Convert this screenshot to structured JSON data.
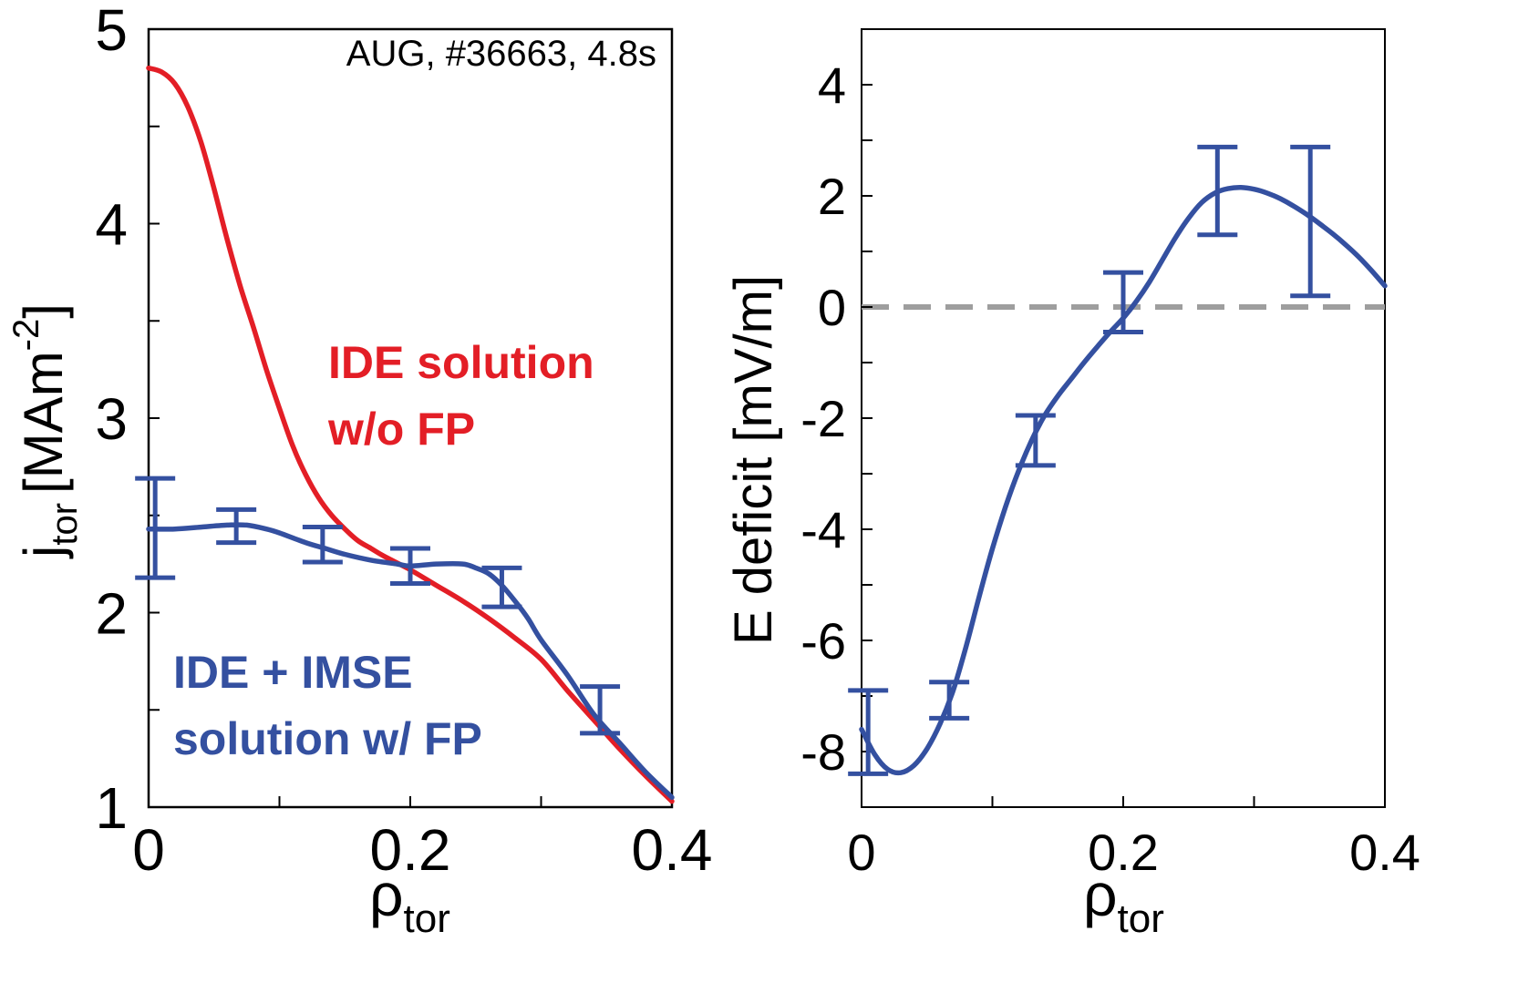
{
  "chart_data": [
    {
      "type": "line",
      "panel": "left",
      "annotation": "AUG, #36663, 4.8s",
      "xlabel": {
        "main": "ρ",
        "sub": "tor"
      },
      "ylabel": {
        "main": "j",
        "sub": "tor",
        "unit_pre": "[MAm",
        "unit_sup": "-2",
        "unit_post": "]"
      },
      "xlim": [
        0,
        0.4
      ],
      "ylim": [
        1,
        5
      ],
      "x_ticks": [
        0,
        0.1,
        0.2,
        0.3,
        0.4
      ],
      "x_tick_labels": [
        {
          "value": 0,
          "label": "0"
        },
        {
          "value": 0.2,
          "label": "0.2"
        },
        {
          "value": 0.4,
          "label": "0.4"
        }
      ],
      "y_ticks": [
        1,
        1.5,
        2,
        2.5,
        3,
        3.5,
        4,
        4.5,
        5
      ],
      "y_tick_labels": [
        {
          "value": 1,
          "label": "1"
        },
        {
          "value": 2,
          "label": "2"
        },
        {
          "value": 3,
          "label": "3"
        },
        {
          "value": 4,
          "label": "4"
        },
        {
          "value": 5,
          "label": "5"
        }
      ],
      "series": [
        {
          "name": "IDE solution w/o FP",
          "label_lines": [
            "IDE solution",
            "w/o FP"
          ],
          "color": "#e31e26",
          "x": [
            0,
            0.01,
            0.02,
            0.03,
            0.04,
            0.05,
            0.06,
            0.07,
            0.08,
            0.09,
            0.1,
            0.11,
            0.12,
            0.13,
            0.14,
            0.15,
            0.16,
            0.17,
            0.18,
            0.2,
            0.22,
            0.24,
            0.26,
            0.28,
            0.3,
            0.32,
            0.34,
            0.36,
            0.38,
            0.4
          ],
          "y": [
            4.8,
            4.78,
            4.72,
            4.6,
            4.42,
            4.18,
            3.92,
            3.68,
            3.47,
            3.25,
            3.05,
            2.86,
            2.71,
            2.59,
            2.5,
            2.43,
            2.37,
            2.33,
            2.29,
            2.22,
            2.14,
            2.06,
            1.97,
            1.87,
            1.76,
            1.6,
            1.45,
            1.3,
            1.16,
            1.03
          ]
        },
        {
          "name": "IDE + IMSE solution w/ FP",
          "label_lines": [
            "IDE + IMSE",
            "solution w/ FP"
          ],
          "color": "#3450a0",
          "x": [
            0,
            0.02,
            0.04,
            0.06,
            0.075,
            0.09,
            0.1,
            0.12,
            0.135,
            0.15,
            0.17,
            0.19,
            0.2,
            0.22,
            0.24,
            0.25,
            0.26,
            0.27,
            0.28,
            0.29,
            0.3,
            0.32,
            0.34,
            0.36,
            0.38,
            0.4
          ],
          "y": [
            2.43,
            2.43,
            2.44,
            2.45,
            2.45,
            2.43,
            2.41,
            2.36,
            2.33,
            2.3,
            2.27,
            2.25,
            2.24,
            2.25,
            2.25,
            2.23,
            2.2,
            2.14,
            2.06,
            1.97,
            1.86,
            1.68,
            1.48,
            1.33,
            1.18,
            1.05
          ]
        }
      ],
      "error_bars": [
        {
          "x": 0.005,
          "y": 2.43,
          "lo": 2.18,
          "hi": 2.69
        },
        {
          "x": 0.067,
          "y": 2.45,
          "lo": 2.36,
          "hi": 2.53
        },
        {
          "x": 0.133,
          "y": 2.35,
          "lo": 2.26,
          "hi": 2.44
        },
        {
          "x": 0.2,
          "y": 2.25,
          "lo": 2.15,
          "hi": 2.33
        },
        {
          "x": 0.27,
          "y": 2.13,
          "lo": 2.03,
          "hi": 2.23
        },
        {
          "x": 0.345,
          "y": 1.5,
          "lo": 1.38,
          "hi": 1.62
        }
      ]
    },
    {
      "type": "line",
      "panel": "right",
      "xlabel": {
        "main": "ρ",
        "sub": "tor"
      },
      "ylabel": {
        "main": "E deficit [mV/m]"
      },
      "xlim": [
        0,
        0.4
      ],
      "ylim": [
        -9,
        5
      ],
      "x_ticks": [
        0,
        0.1,
        0.2,
        0.3,
        0.4
      ],
      "x_tick_labels": [
        {
          "value": 0,
          "label": "0"
        },
        {
          "value": 0.2,
          "label": "0.2"
        },
        {
          "value": 0.4,
          "label": "0.4"
        }
      ],
      "y_ticks": [
        -9,
        -8,
        -7,
        -6,
        -5,
        -4,
        -3,
        -2,
        -1,
        0,
        1,
        2,
        3,
        4,
        5
      ],
      "y_tick_labels": [
        {
          "value": -8,
          "label": "-8"
        },
        {
          "value": -6,
          "label": "-6"
        },
        {
          "value": -4,
          "label": "-4"
        },
        {
          "value": -2,
          "label": "-2"
        },
        {
          "value": 0,
          "label": "0"
        },
        {
          "value": 2,
          "label": "2"
        },
        {
          "value": 4,
          "label": "4"
        }
      ],
      "reference_line": {
        "y": 0,
        "color": "#9e9e9e",
        "style": "dashed"
      },
      "series": [
        {
          "name": "E deficit",
          "color": "#3450a0",
          "x": [
            0,
            0.01,
            0.02,
            0.03,
            0.04,
            0.05,
            0.06,
            0.07,
            0.08,
            0.09,
            0.1,
            0.11,
            0.12,
            0.13,
            0.14,
            0.15,
            0.16,
            0.17,
            0.18,
            0.19,
            0.2,
            0.21,
            0.22,
            0.23,
            0.24,
            0.25,
            0.26,
            0.27,
            0.28,
            0.29,
            0.3,
            0.31,
            0.32,
            0.33,
            0.34,
            0.35,
            0.36,
            0.37,
            0.38,
            0.39,
            0.4
          ],
          "y": [
            -7.6,
            -8.05,
            -8.32,
            -8.38,
            -8.25,
            -7.95,
            -7.5,
            -6.9,
            -6.1,
            -5.2,
            -4.35,
            -3.6,
            -2.95,
            -2.4,
            -1.95,
            -1.6,
            -1.3,
            -1.0,
            -0.72,
            -0.45,
            -0.2,
            0.1,
            0.45,
            0.85,
            1.25,
            1.6,
            1.88,
            2.05,
            2.13,
            2.15,
            2.12,
            2.05,
            1.95,
            1.82,
            1.67,
            1.5,
            1.32,
            1.12,
            0.9,
            0.65,
            0.38
          ]
        }
      ],
      "error_bars": [
        {
          "x": 0.005,
          "y": -7.65,
          "lo": -8.4,
          "hi": -6.9
        },
        {
          "x": 0.067,
          "y": -7.05,
          "lo": -7.4,
          "hi": -6.75
        },
        {
          "x": 0.133,
          "y": -2.4,
          "lo": -2.85,
          "hi": -1.95
        },
        {
          "x": 0.2,
          "y": 0.1,
          "lo": -0.45,
          "hi": 0.62
        },
        {
          "x": 0.272,
          "y": 2.08,
          "lo": 1.3,
          "hi": 2.88
        },
        {
          "x": 0.343,
          "y": 1.6,
          "lo": 0.2,
          "hi": 2.88
        }
      ]
    }
  ]
}
